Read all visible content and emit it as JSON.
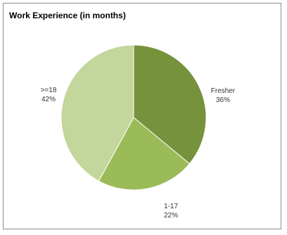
{
  "chart_data": {
    "type": "pie",
    "title": "Work Experience (in months)",
    "slices": [
      {
        "label": "Fresher",
        "value": 36,
        "value_label": "36%",
        "color": "#76923c"
      },
      {
        "label": "1-17",
        "value": 22,
        "value_label": "22%",
        "color": "#9bbb59"
      },
      {
        "label": ">=18",
        "value": 42,
        "value_label": "42%",
        "color": "#c3d69b"
      }
    ],
    "start_angle_deg": 0,
    "direction": "clockwise",
    "legend": "none"
  }
}
